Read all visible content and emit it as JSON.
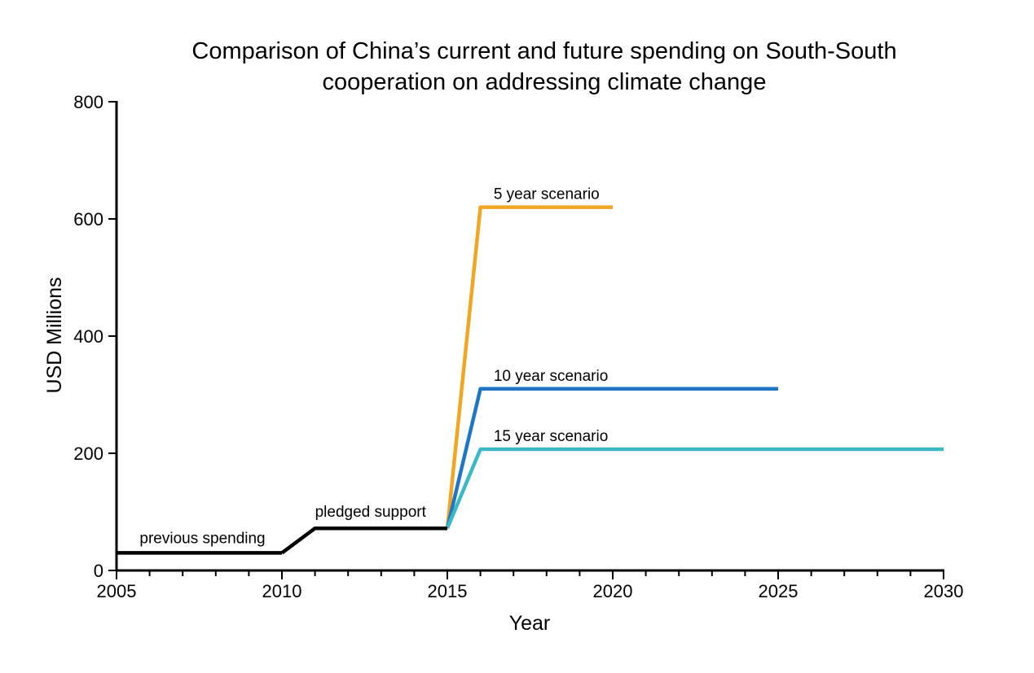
{
  "chart_data": {
    "type": "line",
    "title": [
      "Comparison of China’s current and future spending on South-South",
      "cooperation on addressing climate change"
    ],
    "xlabel": "Year",
    "ylabel": "USD Millions",
    "xlim": [
      2005,
      2030
    ],
    "ylim": [
      0,
      800
    ],
    "x_ticks": [
      2005,
      2010,
      2015,
      2020,
      2025,
      2030
    ],
    "x_minor_step": 1,
    "y_ticks": [
      0,
      200,
      400,
      600,
      800
    ],
    "legend": "none",
    "grid": false,
    "series": [
      {
        "annotation": "previous spending",
        "color": "#000000",
        "points": [
          [
            2005,
            30
          ],
          [
            2010,
            30
          ]
        ]
      },
      {
        "annotation": "pledged support",
        "color": "#000000",
        "points": [
          [
            2010,
            30
          ],
          [
            2011,
            72
          ],
          [
            2015,
            72
          ]
        ]
      },
      {
        "annotation": "5 year scenario",
        "color": "#f0a623",
        "points": [
          [
            2015,
            72
          ],
          [
            2016,
            620
          ],
          [
            2020,
            620
          ]
        ]
      },
      {
        "annotation": "10 year scenario",
        "color": "#1f77c4",
        "points": [
          [
            2015,
            72
          ],
          [
            2016,
            310
          ],
          [
            2025,
            310
          ]
        ]
      },
      {
        "annotation": "15 year scenario",
        "color": "#3cb9c5",
        "points": [
          [
            2015,
            72
          ],
          [
            2016,
            207
          ],
          [
            2030,
            207
          ]
        ]
      }
    ]
  }
}
